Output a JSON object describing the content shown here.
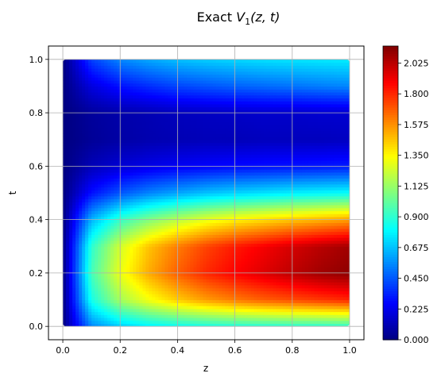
{
  "chart_data": {
    "type": "heatmap",
    "title": {
      "prefix": "Exact ",
      "var": "V",
      "sub": "1",
      "suffix": "(z, t)"
    },
    "xlabel": "z",
    "ylabel": "t",
    "xlim": [
      -0.05,
      1.05
    ],
    "ylim": [
      -0.05,
      1.05
    ],
    "xticks": [
      {
        "value": 0.0,
        "label": "0.0"
      },
      {
        "value": 0.2,
        "label": "0.2"
      },
      {
        "value": 0.4,
        "label": "0.4"
      },
      {
        "value": 0.6,
        "label": "0.6"
      },
      {
        "value": 0.8,
        "label": "0.8"
      },
      {
        "value": 1.0,
        "label": "1.0"
      }
    ],
    "yticks": [
      {
        "value": 0.0,
        "label": "0.0"
      },
      {
        "value": 0.2,
        "label": "0.2"
      },
      {
        "value": 0.4,
        "label": "0.4"
      },
      {
        "value": 0.6,
        "label": "0.6"
      },
      {
        "value": 0.8,
        "label": "0.8"
      },
      {
        "value": 1.0,
        "label": "1.0"
      }
    ],
    "grid": true,
    "colormap": "jet",
    "colorbar": {
      "min": 0.0,
      "max": 2.15,
      "ticks": [
        {
          "value": 0.0,
          "label": "0.000"
        },
        {
          "value": 0.225,
          "label": "0.225"
        },
        {
          "value": 0.45,
          "label": "0.450"
        },
        {
          "value": 0.675,
          "label": "0.675"
        },
        {
          "value": 0.9,
          "label": "0.900"
        },
        {
          "value": 1.125,
          "label": "1.125"
        },
        {
          "value": 1.35,
          "label": "1.350"
        },
        {
          "value": 1.575,
          "label": "1.575"
        },
        {
          "value": 1.8,
          "label": "1.800"
        },
        {
          "value": 2.025,
          "label": "2.025"
        }
      ]
    },
    "z_values": [
      0.0,
      0.1,
      0.2,
      0.3,
      0.4,
      0.5,
      0.6,
      0.7,
      0.8,
      0.9,
      1.0
    ],
    "t_values": [
      0.0,
      0.1,
      0.2,
      0.3,
      0.4,
      0.5,
      0.6,
      0.7,
      0.8,
      0.9,
      1.0
    ],
    "values": [
      [
        0.0,
        0.55,
        0.7,
        0.78,
        0.82,
        0.85,
        0.87,
        0.88,
        0.89,
        0.89,
        0.9
      ],
      [
        0.0,
        0.85,
        1.15,
        1.32,
        1.45,
        1.55,
        1.62,
        1.68,
        1.72,
        1.76,
        1.8
      ],
      [
        0.0,
        0.95,
        1.3,
        1.52,
        1.68,
        1.8,
        1.88,
        1.95,
        2.02,
        2.08,
        2.12
      ],
      [
        0.0,
        0.9,
        1.25,
        1.47,
        1.62,
        1.74,
        1.83,
        1.9,
        1.97,
        2.03,
        2.08
      ],
      [
        0.0,
        0.65,
        0.92,
        1.08,
        1.2,
        1.3,
        1.37,
        1.42,
        1.47,
        1.51,
        1.55
      ],
      [
        0.0,
        0.3,
        0.45,
        0.55,
        0.62,
        0.68,
        0.72,
        0.75,
        0.78,
        0.8,
        0.82
      ],
      [
        0.0,
        0.12,
        0.18,
        0.22,
        0.25,
        0.27,
        0.29,
        0.3,
        0.31,
        0.32,
        0.33
      ],
      [
        0.0,
        0.05,
        0.08,
        0.1,
        0.11,
        0.12,
        0.12,
        0.13,
        0.13,
        0.13,
        0.14
      ],
      [
        0.0,
        0.06,
        0.09,
        0.11,
        0.13,
        0.14,
        0.15,
        0.16,
        0.16,
        0.17,
        0.17
      ],
      [
        0.0,
        0.2,
        0.3,
        0.36,
        0.41,
        0.44,
        0.47,
        0.49,
        0.51,
        0.53,
        0.55
      ],
      [
        0.0,
        0.4,
        0.55,
        0.62,
        0.67,
        0.7,
        0.72,
        0.74,
        0.75,
        0.76,
        0.77
      ]
    ]
  }
}
